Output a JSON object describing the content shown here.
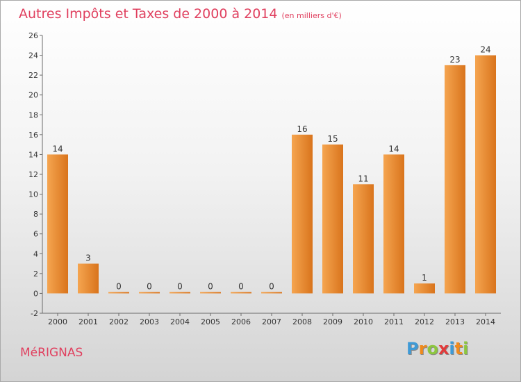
{
  "title": "Autres Impôts et Taxes de 2000 à 2014",
  "unit": "(en milliers d'€)",
  "city": "MéRIGNAS",
  "logo": {
    "letters": [
      "P",
      "r",
      "o",
      "x",
      "i",
      "t",
      "i"
    ],
    "colors": [
      "#3e9ad6",
      "#f08a1c",
      "#8cc63f",
      "#e23a3a",
      "#3e9ad6",
      "#f08a1c",
      "#8cc63f"
    ]
  },
  "colors": {
    "bar_light": "#f5a550",
    "bar_dark": "#d9741c",
    "accent": "#e0405f"
  },
  "chart_data": {
    "type": "bar",
    "title": "Autres Impôts et Taxes de 2000 à 2014",
    "subtitle": "(en milliers d'€)",
    "categories": [
      "2000",
      "2001",
      "2002",
      "2003",
      "2004",
      "2005",
      "2006",
      "2007",
      "2008",
      "2009",
      "2010",
      "2011",
      "2012",
      "2013",
      "2014"
    ],
    "values": [
      14,
      3,
      0,
      0,
      0,
      0,
      0,
      0,
      16,
      15,
      11,
      14,
      1,
      23,
      24
    ],
    "ylim": [
      -2,
      26
    ],
    "yticks": [
      -2,
      0,
      2,
      4,
      6,
      8,
      10,
      12,
      14,
      16,
      18,
      20,
      22,
      24,
      26
    ],
    "grid": false,
    "legend": "none"
  }
}
